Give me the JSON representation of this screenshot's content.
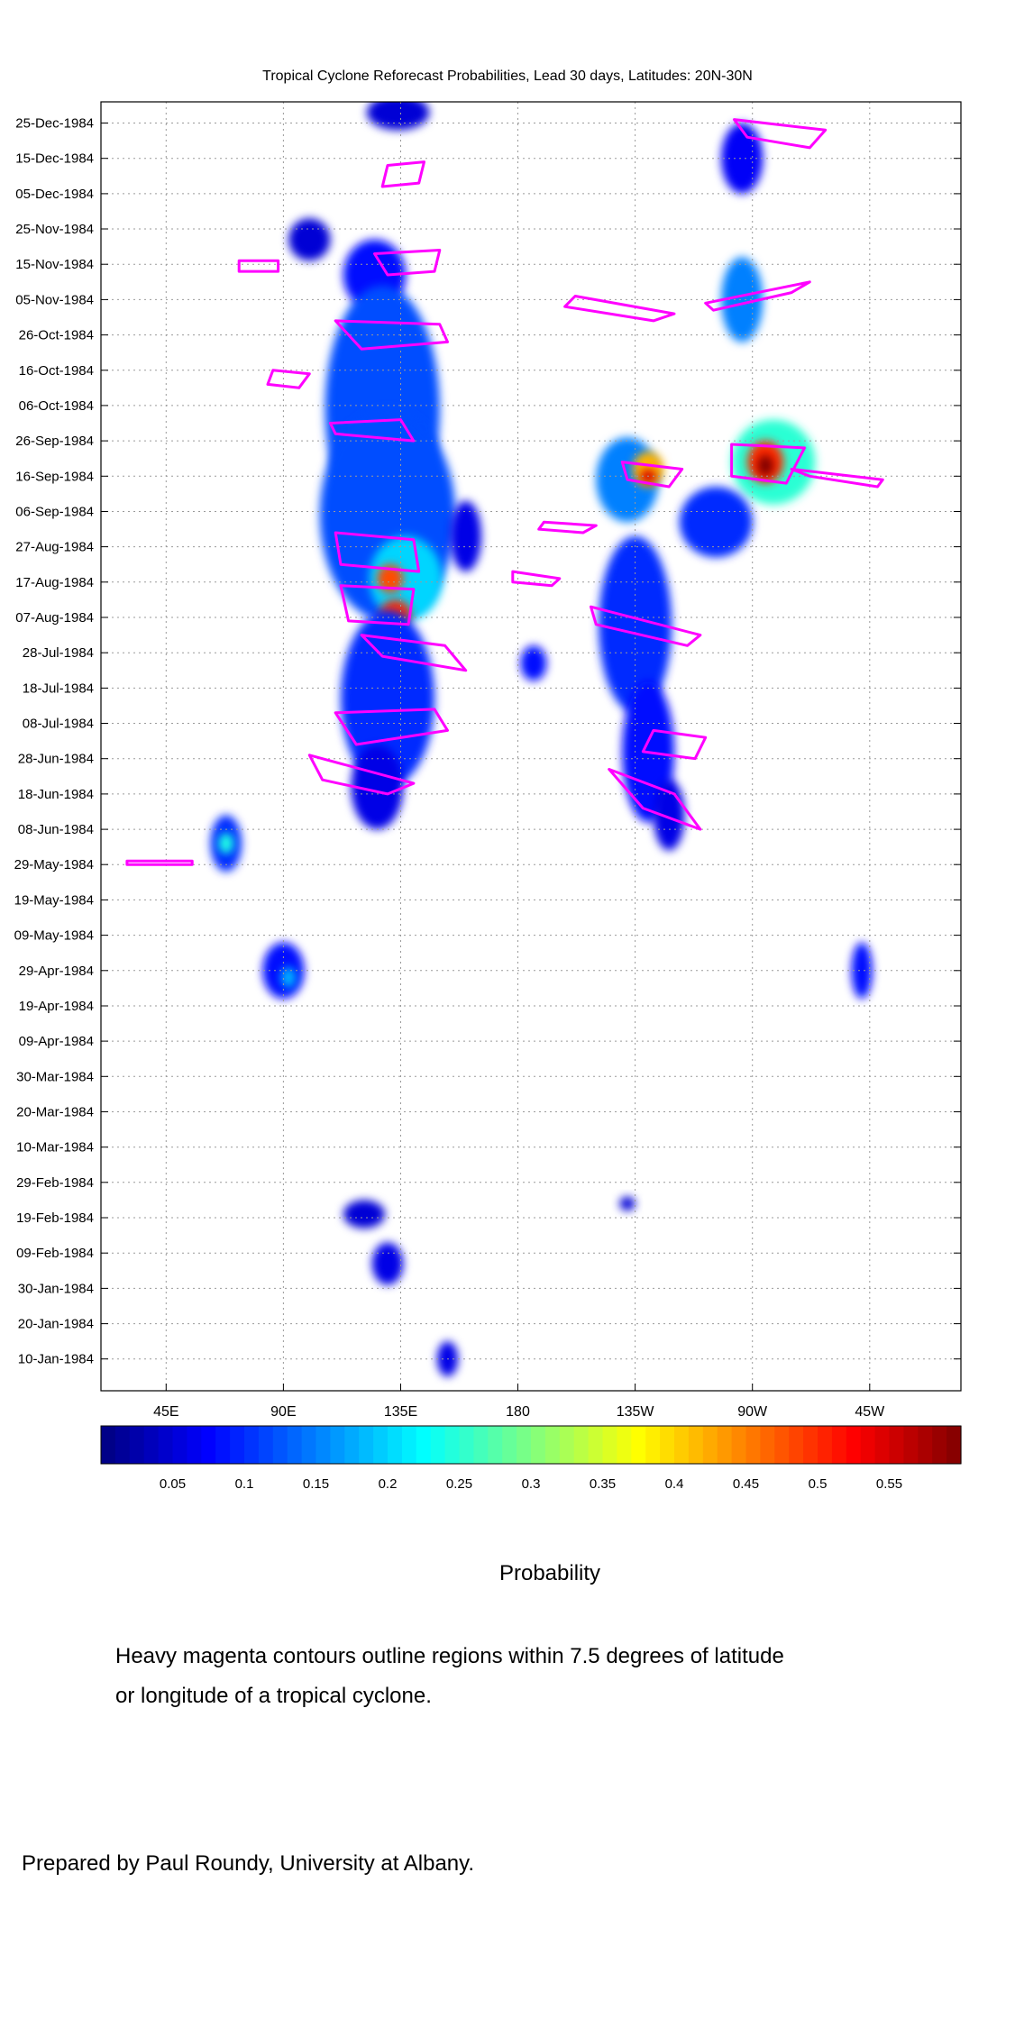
{
  "chart_data": {
    "type": "heatmap",
    "title": "Tropical Cyclone Reforecast Probabilities, Lead 30 days, Latitudes: 20N-30N",
    "y_tick_labels": [
      "25-Dec-1984",
      "15-Dec-1984",
      "05-Dec-1984",
      "25-Nov-1984",
      "15-Nov-1984",
      "05-Nov-1984",
      "26-Oct-1984",
      "16-Oct-1984",
      "06-Oct-1984",
      "26-Sep-1984",
      "16-Sep-1984",
      "06-Sep-1984",
      "27-Aug-1984",
      "17-Aug-1984",
      "07-Aug-1984",
      "28-Jul-1984",
      "18-Jul-1984",
      "08-Jul-1984",
      "28-Jun-1984",
      "18-Jun-1984",
      "08-Jun-1984",
      "29-May-1984",
      "19-May-1984",
      "09-May-1984",
      "29-Apr-1984",
      "19-Apr-1984",
      "09-Apr-1984",
      "30-Mar-1984",
      "20-Mar-1984",
      "10-Mar-1984",
      "29-Feb-1984",
      "19-Feb-1984",
      "09-Feb-1984",
      "30-Jan-1984",
      "20-Jan-1984",
      "10-Jan-1984"
    ],
    "x_tick_labels": [
      "45E",
      "90E",
      "135E",
      "180",
      "135W",
      "90W",
      "45W"
    ],
    "x_ticks_deg_east": [
      45,
      90,
      135,
      180,
      225,
      270,
      315
    ],
    "xlim_deg_east": [
      20,
      350
    ],
    "ylim": [
      "1984-01-01",
      "1984-12-31"
    ],
    "grid": true,
    "colorbar": {
      "label": "Probability",
      "range": [
        0,
        0.6
      ],
      "tick_labels": [
        "0.05",
        "0.1",
        "0.15",
        "0.2",
        "0.25",
        "0.3",
        "0.35",
        "0.4",
        "0.45",
        "0.5",
        "0.55"
      ],
      "ticks": [
        0.05,
        0.1,
        0.15,
        0.2,
        0.25,
        0.3,
        0.35,
        0.4,
        0.45,
        0.5,
        0.55
      ],
      "colormap": "jet"
    },
    "probability_regions": [
      {
        "lon": 134,
        "date": "1984-12-28",
        "dlon": 12,
        "ddays": 5,
        "p": 0.05
      },
      {
        "lon": 100,
        "date": "1984-11-22",
        "dlon": 8,
        "ddays": 6,
        "p": 0.05
      },
      {
        "lon": 125,
        "date": "1984-11-12",
        "dlon": 12,
        "ddays": 10,
        "p": 0.08
      },
      {
        "lon": 128,
        "date": "1984-10-05",
        "dlon": 22,
        "ddays": 35,
        "p": 0.12
      },
      {
        "lon": 130,
        "date": "1984-09-05",
        "dlon": 26,
        "ddays": 30,
        "p": 0.12
      },
      {
        "lon": 137,
        "date": "1984-08-18",
        "dlon": 14,
        "ddays": 12,
        "p": 0.2
      },
      {
        "lon": 131,
        "date": "1984-08-18",
        "dlon": 5,
        "ddays": 4,
        "p": 0.48
      },
      {
        "lon": 133,
        "date": "1984-08-08",
        "dlon": 6,
        "ddays": 4,
        "p": 0.5
      },
      {
        "lon": 130,
        "date": "1984-07-15",
        "dlon": 18,
        "ddays": 25,
        "p": 0.1
      },
      {
        "lon": 126,
        "date": "1984-06-20",
        "dlon": 10,
        "ddays": 12,
        "p": 0.06
      },
      {
        "lon": 160,
        "date": "1984-08-30",
        "dlon": 6,
        "ddays": 10,
        "p": 0.06
      },
      {
        "lon": 266,
        "date": "1984-11-05",
        "dlon": 8,
        "ddays": 12,
        "p": 0.15
      },
      {
        "lon": 266,
        "date": "1984-12-15",
        "dlon": 8,
        "ddays": 10,
        "p": 0.07
      },
      {
        "lon": 222,
        "date": "1984-09-15",
        "dlon": 12,
        "ddays": 12,
        "p": 0.15
      },
      {
        "lon": 230,
        "date": "1984-09-18",
        "dlon": 6,
        "ddays": 5,
        "p": 0.42
      },
      {
        "lon": 230,
        "date": "1984-09-16",
        "dlon": 3,
        "ddays": 2,
        "p": 0.55
      },
      {
        "lon": 278,
        "date": "1984-09-20",
        "dlon": 16,
        "ddays": 12,
        "p": 0.25
      },
      {
        "lon": 275,
        "date": "1984-09-20",
        "dlon": 7,
        "ddays": 6,
        "p": 0.5
      },
      {
        "lon": 275,
        "date": "1984-09-19",
        "dlon": 3,
        "ddays": 3,
        "p": 0.6
      },
      {
        "lon": 256,
        "date": "1984-09-03",
        "dlon": 14,
        "ddays": 10,
        "p": 0.1
      },
      {
        "lon": 225,
        "date": "1984-08-05",
        "dlon": 14,
        "ddays": 25,
        "p": 0.1
      },
      {
        "lon": 230,
        "date": "1984-06-30",
        "dlon": 10,
        "ddays": 20,
        "p": 0.08
      },
      {
        "lon": 238,
        "date": "1984-06-12",
        "dlon": 6,
        "ddays": 10,
        "p": 0.06
      },
      {
        "lon": 186,
        "date": "1984-07-25",
        "dlon": 5,
        "ddays": 5,
        "p": 0.08
      },
      {
        "lon": 68,
        "date": "1984-06-04",
        "dlon": 6,
        "ddays": 8,
        "p": 0.1
      },
      {
        "lon": 68,
        "date": "1984-06-04",
        "dlon": 3,
        "ddays": 3,
        "p": 0.24
      },
      {
        "lon": 90,
        "date": "1984-04-29",
        "dlon": 8,
        "ddays": 8,
        "p": 0.08
      },
      {
        "lon": 92,
        "date": "1984-04-27",
        "dlon": 3,
        "ddays": 3,
        "p": 0.18
      },
      {
        "lon": 312,
        "date": "1984-04-29",
        "dlon": 4,
        "ddays": 8,
        "p": 0.08
      },
      {
        "lon": 121,
        "date": "1984-02-20",
        "dlon": 8,
        "ddays": 4,
        "p": 0.05
      },
      {
        "lon": 130,
        "date": "1984-02-06",
        "dlon": 6,
        "ddays": 6,
        "p": 0.06
      },
      {
        "lon": 153,
        "date": "1984-01-10",
        "dlon": 4,
        "ddays": 5,
        "p": 0.06
      },
      {
        "lon": 222,
        "date": "1984-02-23",
        "dlon": 3,
        "ddays": 2,
        "p": 0.05
      }
    ],
    "contour_color": "#FF00FF",
    "tc_contours": [
      [
        [
          130,
          "1984-12-13"
        ],
        [
          144,
          "1984-12-14"
        ],
        [
          142,
          "1984-12-08"
        ],
        [
          128,
          "1984-12-07"
        ]
      ],
      [
        [
          125,
          "1984-11-18"
        ],
        [
          150,
          "1984-11-19"
        ],
        [
          148,
          "1984-11-13"
        ],
        [
          130,
          "1984-11-12"
        ]
      ],
      [
        [
          110,
          "1984-10-30"
        ],
        [
          150,
          "1984-10-29"
        ],
        [
          153,
          "1984-10-24"
        ],
        [
          120,
          "1984-10-22"
        ]
      ],
      [
        [
          108,
          "1984-10-01"
        ],
        [
          135,
          "1984-10-02"
        ],
        [
          140,
          "1984-09-26"
        ],
        [
          110,
          "1984-09-28"
        ]
      ],
      [
        [
          110,
          "1984-08-31"
        ],
        [
          140,
          "1984-08-29"
        ],
        [
          142,
          "1984-08-20"
        ],
        [
          112,
          "1984-08-22"
        ]
      ],
      [
        [
          112,
          "1984-08-16"
        ],
        [
          140,
          "1984-08-15"
        ],
        [
          138,
          "1984-08-05"
        ],
        [
          115,
          "1984-08-06"
        ]
      ],
      [
        [
          120,
          "1984-08-02"
        ],
        [
          152,
          "1984-07-30"
        ],
        [
          160,
          "1984-07-23"
        ],
        [
          128,
          "1984-07-27"
        ]
      ],
      [
        [
          110,
          "1984-07-11"
        ],
        [
          148,
          "1984-07-12"
        ],
        [
          153,
          "1984-07-06"
        ],
        [
          118,
          "1984-07-02"
        ]
      ],
      [
        [
          100,
          "1984-06-29"
        ],
        [
          140,
          "1984-06-21"
        ],
        [
          130,
          "1984-06-18"
        ],
        [
          105,
          "1984-06-22"
        ]
      ],
      [
        [
          202,
          "1984-11-06"
        ],
        [
          240,
          "1984-11-01"
        ],
        [
          232,
          "1984-10-30"
        ],
        [
          198,
          "1984-11-03"
        ]
      ],
      [
        [
          252,
          "1984-11-04"
        ],
        [
          292,
          "1984-11-10"
        ],
        [
          285,
          "1984-11-07"
        ],
        [
          255,
          "1984-11-02"
        ]
      ],
      [
        [
          263,
          "1984-12-26"
        ],
        [
          298,
          "1984-12-23"
        ],
        [
          292,
          "1984-12-18"
        ],
        [
          268,
          "1984-12-21"
        ]
      ],
      [
        [
          220,
          "1984-09-20"
        ],
        [
          243,
          "1984-09-18"
        ],
        [
          238,
          "1984-09-13"
        ],
        [
          222,
          "1984-09-15"
        ]
      ],
      [
        [
          262,
          "1984-09-25"
        ],
        [
          290,
          "1984-09-24"
        ],
        [
          283,
          "1984-09-14"
        ],
        [
          262,
          "1984-09-16"
        ]
      ],
      [
        [
          285,
          "1984-09-18"
        ],
        [
          320,
          "1984-09-15"
        ],
        [
          318,
          "1984-09-13"
        ],
        [
          292,
          "1984-09-16"
        ]
      ],
      [
        [
          208,
          "1984-08-10"
        ],
        [
          250,
          "1984-08-02"
        ],
        [
          245,
          "1984-07-30"
        ],
        [
          210,
          "1984-08-05"
        ]
      ],
      [
        [
          232,
          "1984-07-06"
        ],
        [
          252,
          "1984-07-04"
        ],
        [
          248,
          "1984-06-28"
        ],
        [
          228,
          "1984-06-30"
        ]
      ],
      [
        [
          215,
          "1984-06-25"
        ],
        [
          240,
          "1984-06-18"
        ],
        [
          250,
          "1984-06-08"
        ],
        [
          228,
          "1984-06-14"
        ]
      ],
      [
        [
          86,
          "1984-10-16"
        ],
        [
          100,
          "1984-10-15"
        ],
        [
          96,
          "1984-10-11"
        ],
        [
          84,
          "1984-10-12"
        ]
      ],
      [
        [
          178,
          "1984-08-20"
        ],
        [
          196,
          "1984-08-18"
        ],
        [
          193,
          "1984-08-16"
        ],
        [
          178,
          "1984-08-17"
        ]
      ],
      [
        [
          190,
          "1984-09-03"
        ],
        [
          210,
          "1984-09-02"
        ],
        [
          205,
          "1984-08-31"
        ],
        [
          188,
          "1984-09-01"
        ]
      ],
      [
        [
          30,
          "1984-05-30"
        ],
        [
          55,
          "1984-05-30"
        ],
        [
          55,
          "1984-05-29"
        ],
        [
          30,
          "1984-05-29"
        ]
      ],
      [
        [
          73,
          "1984-11-16"
        ],
        [
          88,
          "1984-11-16"
        ],
        [
          88,
          "1984-11-13"
        ],
        [
          73,
          "1984-11-13"
        ]
      ]
    ]
  },
  "colorbar_label": "Probability",
  "note_line1": "Heavy magenta contours outline regions within 7.5 degrees of latitude",
  "note_line2": "or longitude of a tropical cyclone.",
  "credit": "Prepared by Paul Roundy, University at Albany."
}
